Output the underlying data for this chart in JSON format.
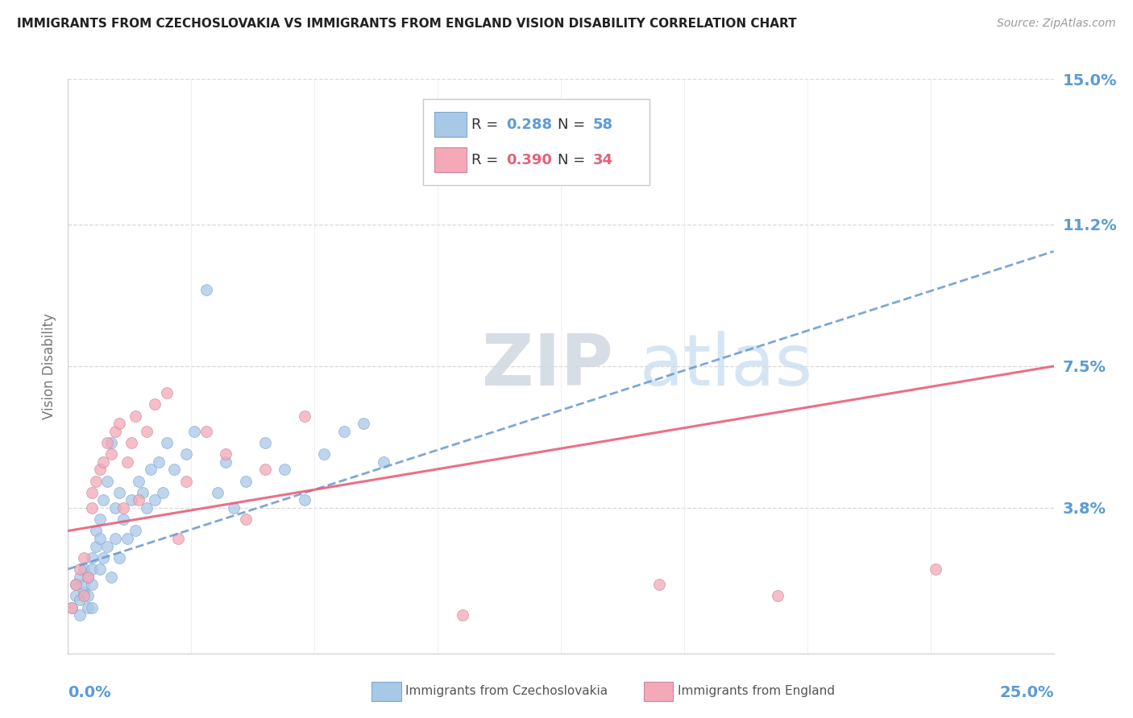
{
  "title": "IMMIGRANTS FROM CZECHOSLOVAKIA VS IMMIGRANTS FROM ENGLAND VISION DISABILITY CORRELATION CHART",
  "source": "Source: ZipAtlas.com",
  "ylabel": "Vision Disability",
  "xmin": 0.0,
  "xmax": 0.25,
  "ymin": 0.0,
  "ymax": 0.15,
  "ytick_vals": [
    0.038,
    0.075,
    0.112,
    0.15
  ],
  "ytick_labels": [
    "3.8%",
    "7.5%",
    "11.2%",
    "15.0%"
  ],
  "r_czech": "0.288",
  "n_czech": "58",
  "r_england": "0.390",
  "n_england": "34",
  "color_czech": "#a8c8e8",
  "color_england": "#f4a8b8",
  "color_trend_czech": "#6699cc",
  "color_trend_england": "#e8607a",
  "color_axis": "#5b9bd5",
  "color_grid": "#d8d8d8",
  "watermark_text": "ZIPatlas",
  "watermark_color": "#ddeef8",
  "legend_label1": "Immigrants from Czechoslovakia",
  "legend_label2": "Immigrants from England",
  "czech_x": [
    0.001,
    0.002,
    0.002,
    0.003,
    0.003,
    0.003,
    0.004,
    0.004,
    0.004,
    0.005,
    0.005,
    0.005,
    0.006,
    0.006,
    0.006,
    0.006,
    0.007,
    0.007,
    0.008,
    0.008,
    0.008,
    0.009,
    0.009,
    0.01,
    0.01,
    0.011,
    0.011,
    0.012,
    0.012,
    0.013,
    0.013,
    0.014,
    0.015,
    0.016,
    0.017,
    0.018,
    0.019,
    0.02,
    0.021,
    0.022,
    0.023,
    0.024,
    0.025,
    0.027,
    0.03,
    0.032,
    0.035,
    0.038,
    0.04,
    0.042,
    0.045,
    0.05,
    0.055,
    0.06,
    0.065,
    0.07,
    0.075,
    0.08
  ],
  "czech_y": [
    0.012,
    0.015,
    0.018,
    0.014,
    0.02,
    0.01,
    0.016,
    0.022,
    0.018,
    0.012,
    0.015,
    0.02,
    0.025,
    0.018,
    0.022,
    0.012,
    0.028,
    0.032,
    0.022,
    0.03,
    0.035,
    0.025,
    0.04,
    0.028,
    0.045,
    0.02,
    0.055,
    0.03,
    0.038,
    0.025,
    0.042,
    0.035,
    0.03,
    0.04,
    0.032,
    0.045,
    0.042,
    0.038,
    0.048,
    0.04,
    0.05,
    0.042,
    0.055,
    0.048,
    0.052,
    0.058,
    0.095,
    0.042,
    0.05,
    0.038,
    0.045,
    0.055,
    0.048,
    0.04,
    0.052,
    0.058,
    0.06,
    0.05
  ],
  "england_x": [
    0.001,
    0.002,
    0.003,
    0.004,
    0.004,
    0.005,
    0.006,
    0.006,
    0.007,
    0.008,
    0.009,
    0.01,
    0.011,
    0.012,
    0.013,
    0.014,
    0.015,
    0.016,
    0.017,
    0.018,
    0.02,
    0.022,
    0.025,
    0.028,
    0.03,
    0.035,
    0.04,
    0.045,
    0.05,
    0.06,
    0.1,
    0.15,
    0.18,
    0.22
  ],
  "england_y": [
    0.012,
    0.018,
    0.022,
    0.015,
    0.025,
    0.02,
    0.038,
    0.042,
    0.045,
    0.048,
    0.05,
    0.055,
    0.052,
    0.058,
    0.06,
    0.038,
    0.05,
    0.055,
    0.062,
    0.04,
    0.058,
    0.065,
    0.068,
    0.03,
    0.045,
    0.058,
    0.052,
    0.035,
    0.048,
    0.062,
    0.01,
    0.018,
    0.015,
    0.022
  ],
  "czech_trend_x0": 0.0,
  "czech_trend_y0": 0.022,
  "czech_trend_x1": 0.25,
  "czech_trend_y1": 0.105,
  "england_trend_x0": 0.0,
  "england_trend_y0": 0.032,
  "england_trend_x1": 0.25,
  "england_trend_y1": 0.075
}
